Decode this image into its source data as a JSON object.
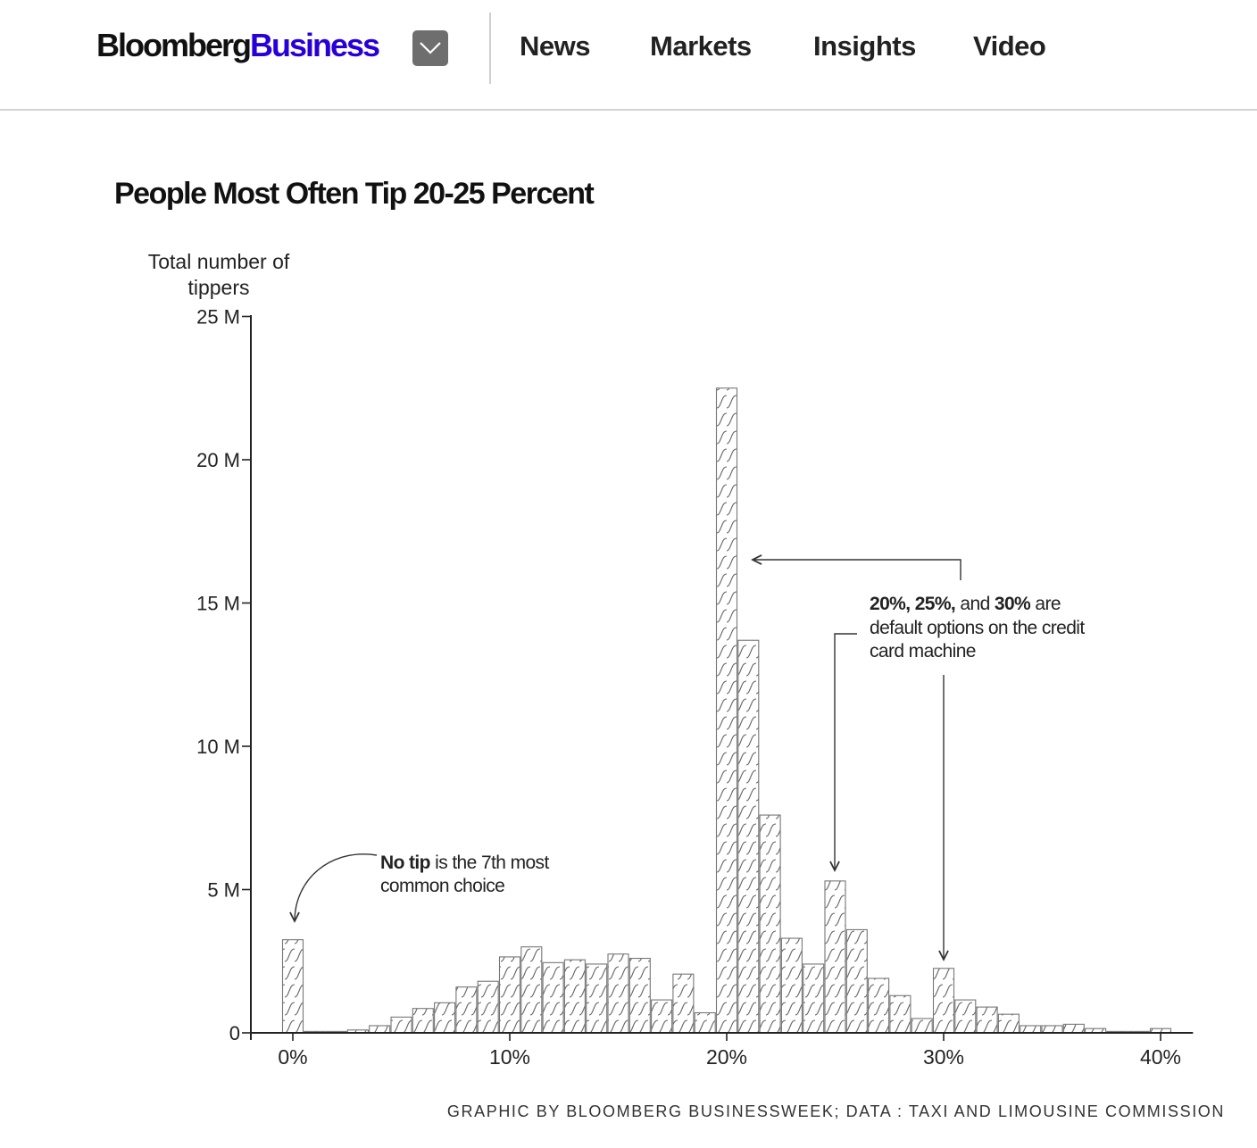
{
  "header": {
    "logo_brand": "Bloomberg",
    "logo_product": "Business",
    "menu_icon": "chevron-down-icon",
    "nav": [
      "News",
      "Markets",
      "Insights",
      "Video"
    ],
    "colors": {
      "brand_accent": "#2800d7",
      "menu_button": "#6e6e6e"
    }
  },
  "credit": "GRAPHIC BY BLOOMBERG BUSINESSWEEK; DATA : TAXI AND LIMOUSINE COMMISSION",
  "chart_data": {
    "type": "bar",
    "title": "People Most Often Tip 20-25 Percent",
    "ylabel": "Total number of tippers",
    "xlabel": "",
    "xlim": [
      -1,
      41
    ],
    "ylim": [
      0,
      25
    ],
    "y_unit": "millions",
    "yticks": [
      0,
      5,
      10,
      15,
      20,
      25
    ],
    "ytick_labels": [
      "0",
      "5 M",
      "10 M",
      "15 M",
      "20 M",
      "25 M"
    ],
    "xticks": [
      0,
      10,
      20,
      30,
      40
    ],
    "xtick_labels": [
      "0%",
      "10%",
      "20%",
      "30%",
      "40%"
    ],
    "grid": false,
    "legend": "none",
    "bar_pattern": "hatched wavy lines",
    "x": [
      0,
      1,
      2,
      3,
      4,
      5,
      6,
      7,
      8,
      9,
      10,
      11,
      12,
      13,
      14,
      15,
      16,
      17,
      18,
      19,
      20,
      21,
      22,
      23,
      24,
      25,
      26,
      27,
      28,
      29,
      30,
      31,
      32,
      33,
      34,
      35,
      36,
      37,
      38,
      39,
      40
    ],
    "values": [
      3.25,
      0.05,
      0.05,
      0.1,
      0.25,
      0.55,
      0.85,
      1.05,
      1.6,
      1.8,
      2.65,
      3.0,
      2.45,
      2.55,
      2.4,
      2.75,
      2.6,
      1.15,
      2.05,
      0.7,
      22.5,
      13.7,
      7.6,
      3.3,
      2.4,
      5.3,
      3.6,
      1.9,
      1.3,
      0.5,
      2.25,
      1.15,
      0.9,
      0.65,
      0.25,
      0.25,
      0.3,
      0.15,
      0.05,
      0.05,
      0.15
    ],
    "annotations": [
      {
        "bold": "No tip",
        "text": " is the 7th most",
        "line2": "common choice"
      },
      {
        "bold_parts": [
          "20%, ",
          "25%, ",
          "and ",
          "30%"
        ],
        "text_after": " are",
        "line2": "default options on the credit",
        "line3": "card machine"
      }
    ]
  }
}
